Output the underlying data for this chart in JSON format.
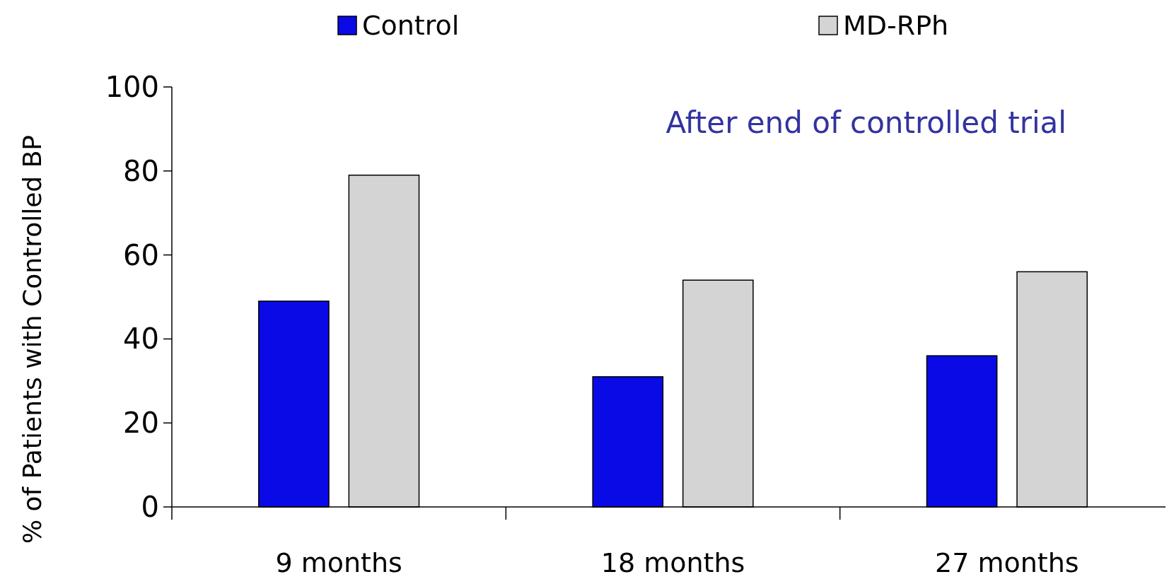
{
  "chart_data": {
    "type": "bar",
    "ylabel": "% of Patients with Controlled BP",
    "categories": [
      "9 months",
      "18 months",
      "27 months"
    ],
    "series": [
      {
        "name": "Control",
        "color": "#0a0ae6",
        "values": [
          49,
          31,
          36
        ]
      },
      {
        "name": "MD-RPh",
        "color": "#d4d4d4",
        "values": [
          79,
          54,
          56
        ]
      }
    ],
    "ylim": [
      0,
      100
    ],
    "yticks": [
      0,
      20,
      40,
      60,
      80,
      100
    ],
    "grid": false,
    "legend": "top",
    "annotations": [
      "After end of controlled trial"
    ]
  }
}
